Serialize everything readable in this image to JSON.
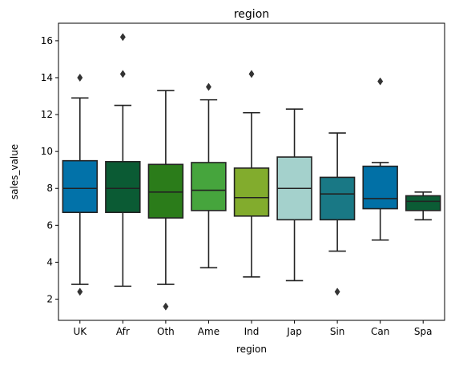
{
  "chart_data": {
    "type": "box",
    "title": "region",
    "xlabel": "region",
    "ylabel": "sales_value",
    "ylim": [
      0.85,
      16.95
    ],
    "yticks": [
      2,
      4,
      6,
      8,
      10,
      12,
      14,
      16
    ],
    "ytick_labels": [
      "2",
      "4",
      "6",
      "8",
      "10",
      "12",
      "14",
      "16"
    ],
    "grid": false,
    "categories": [
      "UK",
      "Afr",
      "Oth",
      "Ame",
      "Ind",
      "Jap",
      "Sin",
      "Can",
      "Spa"
    ],
    "boxes": [
      {
        "category": "UK",
        "whisker_low": 2.8,
        "q1": 6.7,
        "median": 8.0,
        "q3": 9.5,
        "whisker_high": 12.9,
        "outliers": [
          2.4,
          14.0
        ],
        "color": "#0272a9"
      },
      {
        "category": "Afr",
        "whisker_low": 2.7,
        "q1": 6.7,
        "median": 8.0,
        "q3": 9.45,
        "whisker_high": 12.5,
        "outliers": [
          14.2,
          16.2
        ],
        "color": "#0b5b34"
      },
      {
        "category": "Oth",
        "whisker_low": 2.8,
        "q1": 6.4,
        "median": 7.8,
        "q3": 9.3,
        "whisker_high": 13.3,
        "outliers": [
          1.6
        ],
        "color": "#2b7c1a"
      },
      {
        "category": "Ame",
        "whisker_low": 3.7,
        "q1": 6.8,
        "median": 7.9,
        "q3": 9.4,
        "whisker_high": 12.8,
        "outliers": [
          13.5
        ],
        "color": "#46a53d"
      },
      {
        "category": "Ind",
        "whisker_low": 3.2,
        "q1": 6.5,
        "median": 7.5,
        "q3": 9.1,
        "whisker_high": 12.1,
        "outliers": [
          14.2
        ],
        "color": "#82ac2d"
      },
      {
        "category": "Jap",
        "whisker_low": 3.0,
        "q1": 6.3,
        "median": 8.0,
        "q3": 9.7,
        "whisker_high": 12.3,
        "outliers": [],
        "color": "#a4d1cc"
      },
      {
        "category": "Sin",
        "whisker_low": 4.6,
        "q1": 6.3,
        "median": 7.7,
        "q3": 8.6,
        "whisker_high": 11.0,
        "outliers": [
          2.4
        ],
        "color": "#197885"
      },
      {
        "category": "Can",
        "whisker_low": 5.2,
        "q1": 6.9,
        "median": 7.45,
        "q3": 9.2,
        "whisker_high": 9.4,
        "outliers": [
          13.8
        ],
        "color": "#0170a6"
      },
      {
        "category": "Spa",
        "whisker_low": 6.3,
        "q1": 6.8,
        "median": 7.3,
        "q3": 7.6,
        "whisker_high": 7.8,
        "outliers": [],
        "color": "#0b5c35"
      }
    ]
  }
}
